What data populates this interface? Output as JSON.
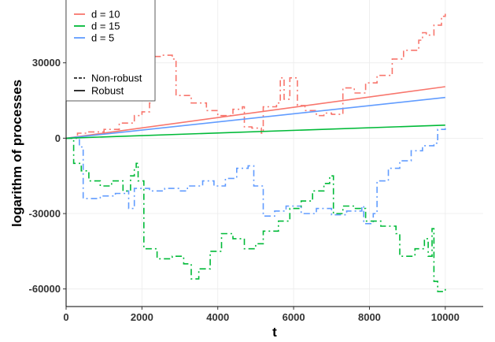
{
  "chart_data": {
    "type": "line",
    "xlabel": "t",
    "ylabel": "logarithm of processes",
    "xlim": [
      0,
      11000
    ],
    "ylim": [
      -67000,
      55000
    ],
    "x_ticks": [
      0,
      2000,
      4000,
      6000,
      8000,
      10000
    ],
    "x_tick_labels": [
      "0",
      "2000",
      "4000",
      "6000",
      "8000",
      "10000"
    ],
    "y_ticks": [
      -60000,
      -30000,
      0,
      30000
    ],
    "y_tick_labels": [
      "-60000",
      "-30000",
      "0",
      "30000"
    ],
    "legend": {
      "placement": "top-left",
      "color_entries": [
        {
          "label": "d = 10",
          "color": "#F8766D"
        },
        {
          "label": "d = 15",
          "color": "#00BA38"
        },
        {
          "label": "d = 5",
          "color": "#619CFF"
        }
      ],
      "linetype_entries": [
        {
          "label": "Non-robust",
          "dash": "dashed"
        },
        {
          "label": "Robust",
          "dash": "solid"
        }
      ]
    },
    "series": [
      {
        "d": "10",
        "kind": "robust",
        "color": "#F8766D",
        "dash": "solid",
        "points": [
          [
            0,
            0
          ],
          [
            10000,
            20500
          ]
        ]
      },
      {
        "d": "5",
        "kind": "robust",
        "color": "#619CFF",
        "dash": "solid",
        "points": [
          [
            0,
            0
          ],
          [
            10000,
            16200
          ]
        ]
      },
      {
        "d": "15",
        "kind": "robust",
        "color": "#00BA38",
        "dash": "solid",
        "points": [
          [
            0,
            0
          ],
          [
            10000,
            5200
          ]
        ]
      },
      {
        "d": "10",
        "kind": "non-robust",
        "color": "#F8766D",
        "dash": "dashdot",
        "points": [
          [
            0,
            0
          ],
          [
            300,
            2000
          ],
          [
            600,
            2500
          ],
          [
            1000,
            3500
          ],
          [
            1400,
            6000
          ],
          [
            1800,
            9000
          ],
          [
            2000,
            10500
          ],
          [
            2200,
            14000
          ],
          [
            2250,
            32500
          ],
          [
            2500,
            33000
          ],
          [
            2800,
            31500
          ],
          [
            2900,
            17000
          ],
          [
            3300,
            14000
          ],
          [
            3700,
            11000
          ],
          [
            4000,
            9000
          ],
          [
            4400,
            11500
          ],
          [
            4650,
            12500
          ],
          [
            4700,
            4500
          ],
          [
            4900,
            4000
          ],
          [
            5150,
            2000
          ],
          [
            5200,
            12500
          ],
          [
            5550,
            14000
          ],
          [
            5650,
            24000
          ],
          [
            5750,
            15500
          ],
          [
            5900,
            24000
          ],
          [
            6100,
            13000
          ],
          [
            6300,
            11000
          ],
          [
            6600,
            9000
          ],
          [
            6800,
            10000
          ],
          [
            7000,
            9500
          ],
          [
            7300,
            20000
          ],
          [
            7600,
            18000
          ],
          [
            7900,
            22000
          ],
          [
            8200,
            25000
          ],
          [
            8600,
            31500
          ],
          [
            8900,
            35000
          ],
          [
            9300,
            39000
          ],
          [
            9400,
            42000
          ],
          [
            9500,
            41000
          ],
          [
            9700,
            45000
          ],
          [
            9900,
            48500
          ],
          [
            10000,
            49500
          ]
        ]
      },
      {
        "d": "5",
        "kind": "non-robust",
        "color": "#619CFF",
        "dash": "dashdot",
        "points": [
          [
            0,
            0
          ],
          [
            350,
            -3500
          ],
          [
            450,
            -24000
          ],
          [
            900,
            -23000
          ],
          [
            1300,
            -22000
          ],
          [
            1600,
            -21000
          ],
          [
            1650,
            -28000
          ],
          [
            1800,
            -20000
          ],
          [
            2200,
            -21000
          ],
          [
            2600,
            -20000
          ],
          [
            3000,
            -21000
          ],
          [
            3200,
            -19000
          ],
          [
            3600,
            -17000
          ],
          [
            3900,
            -19000
          ],
          [
            4200,
            -16000
          ],
          [
            4500,
            -12000
          ],
          [
            4800,
            -11000
          ],
          [
            4950,
            -19000
          ],
          [
            5150,
            -19000
          ],
          [
            5200,
            -31000
          ],
          [
            5500,
            -29000
          ],
          [
            5800,
            -27000
          ],
          [
            6200,
            -30000
          ],
          [
            6600,
            -28000
          ],
          [
            7000,
            -30500
          ],
          [
            7400,
            -29000
          ],
          [
            7800,
            -27000
          ],
          [
            7850,
            -34000
          ],
          [
            8100,
            -30000
          ],
          [
            8200,
            -17000
          ],
          [
            8500,
            -12000
          ],
          [
            8800,
            -9000
          ],
          [
            9100,
            -5000
          ],
          [
            9400,
            -3000
          ],
          [
            9700,
            -2000
          ],
          [
            9800,
            3500
          ],
          [
            10000,
            4000
          ]
        ]
      },
      {
        "d": "15",
        "kind": "non-robust",
        "color": "#00BA38",
        "dash": "dashdot",
        "points": [
          [
            0,
            0
          ],
          [
            200,
            -10000
          ],
          [
            400,
            -13000
          ],
          [
            600,
            -17000
          ],
          [
            900,
            -19000
          ],
          [
            1200,
            -17000
          ],
          [
            1500,
            -21000
          ],
          [
            1700,
            -15000
          ],
          [
            1800,
            -12000
          ],
          [
            1850,
            -10000
          ],
          [
            1900,
            -17000
          ],
          [
            2050,
            -44000
          ],
          [
            2400,
            -48000
          ],
          [
            2800,
            -47000
          ],
          [
            3100,
            -50000
          ],
          [
            3300,
            -56000
          ],
          [
            3500,
            -52000
          ],
          [
            3800,
            -45000
          ],
          [
            4100,
            -38000
          ],
          [
            4400,
            -40000
          ],
          [
            4700,
            -44000
          ],
          [
            5000,
            -42000
          ],
          [
            5200,
            -37000
          ],
          [
            5600,
            -33000
          ],
          [
            5900,
            -28000
          ],
          [
            6200,
            -25000
          ],
          [
            6500,
            -21000
          ],
          [
            6800,
            -18000
          ],
          [
            6950,
            -15000
          ],
          [
            7050,
            -30000
          ],
          [
            7300,
            -27000
          ],
          [
            7600,
            -28000
          ],
          [
            7900,
            -33000
          ],
          [
            8300,
            -35000
          ],
          [
            8700,
            -38000
          ],
          [
            8800,
            -47000
          ],
          [
            9200,
            -44000
          ],
          [
            9450,
            -40000
          ],
          [
            9550,
            -47000
          ],
          [
            9650,
            -36000
          ],
          [
            9700,
            -57000
          ],
          [
            9800,
            -61000
          ],
          [
            10000,
            -59000
          ]
        ]
      }
    ]
  }
}
